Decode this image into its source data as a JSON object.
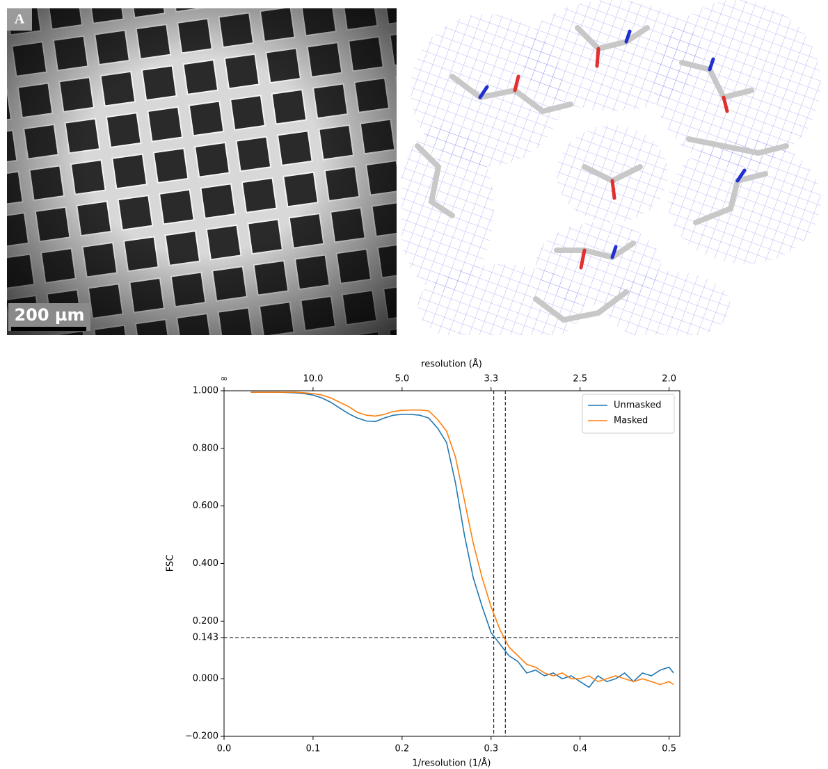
{
  "panels": {
    "label": "A",
    "scale_bar": "200 µm"
  },
  "chart_data": {
    "type": "line",
    "xlabel": "1/resolution (1/Å)",
    "x2label": "resolution (Å)",
    "ylabel": "FSC",
    "xlim": [
      0,
      0.512
    ],
    "x2lim": [
      0,
      0.512
    ],
    "ylim": [
      -0.2,
      1.0
    ],
    "xticks": [
      {
        "value": 0,
        "label": "0.0"
      },
      0.1,
      0.2,
      0.3,
      0.4,
      0.5
    ],
    "x2ticks": [
      {
        "value": 0,
        "label": "∞"
      },
      {
        "value": 0.1,
        "label": "10.0"
      },
      {
        "value": 0.2,
        "label": "5.0"
      },
      {
        "value": 0.3,
        "label": "3.3"
      },
      {
        "value": 0.4,
        "label": "2.5"
      },
      {
        "value": 0.5,
        "label": "2.0"
      }
    ],
    "yticks": [
      {
        "value": -0.2,
        "label": "−0.200"
      },
      {
        "value": 0,
        "label": "0.000"
      },
      {
        "value": 0.143,
        "label": "0.143"
      },
      {
        "value": 0.2,
        "label": "0.200"
      },
      {
        "value": 0.4,
        "label": "0.400"
      },
      {
        "value": 0.6,
        "label": "0.600"
      },
      {
        "value": 0.8,
        "label": "0.800"
      },
      {
        "value": 1.0,
        "label": "1.000"
      }
    ],
    "hlines": [
      0.143
    ],
    "vlines": [
      0.303,
      0.316
    ],
    "legend": "upper right",
    "x": [
      0.03,
      0.04,
      0.05,
      0.06,
      0.07,
      0.08,
      0.09,
      0.1,
      0.11,
      0.12,
      0.13,
      0.14,
      0.15,
      0.16,
      0.17,
      0.18,
      0.19,
      0.2,
      0.21,
      0.22,
      0.23,
      0.24,
      0.25,
      0.26,
      0.27,
      0.28,
      0.29,
      0.3,
      0.31,
      0.32,
      0.33,
      0.34,
      0.35,
      0.36,
      0.37,
      0.38,
      0.39,
      0.4,
      0.41,
      0.42,
      0.43,
      0.44,
      0.45,
      0.46,
      0.47,
      0.48,
      0.49,
      0.5,
      0.505
    ],
    "series": [
      {
        "name": "Unmasked",
        "color": "#1f77b4",
        "values": [
          0.995,
          0.995,
          0.995,
          0.995,
          0.994,
          0.993,
          0.99,
          0.985,
          0.975,
          0.96,
          0.94,
          0.92,
          0.905,
          0.895,
          0.893,
          0.905,
          0.915,
          0.918,
          0.918,
          0.915,
          0.905,
          0.87,
          0.82,
          0.68,
          0.5,
          0.35,
          0.25,
          0.16,
          0.12,
          0.08,
          0.06,
          0.02,
          0.03,
          0.01,
          0.02,
          0.0,
          0.01,
          -0.01,
          -0.03,
          0.01,
          -0.01,
          0.0,
          0.02,
          -0.01,
          0.02,
          0.01,
          0.03,
          0.04,
          0.02
        ]
      },
      {
        "name": "Masked",
        "color": "#ff7f0e",
        "values": [
          0.995,
          0.995,
          0.995,
          0.995,
          0.995,
          0.995,
          0.993,
          0.99,
          0.985,
          0.975,
          0.96,
          0.945,
          0.925,
          0.915,
          0.912,
          0.918,
          0.928,
          0.932,
          0.933,
          0.933,
          0.93,
          0.9,
          0.86,
          0.77,
          0.62,
          0.47,
          0.35,
          0.25,
          0.17,
          0.11,
          0.08,
          0.05,
          0.04,
          0.02,
          0.01,
          0.02,
          0.0,
          0.0,
          0.01,
          -0.01,
          0.0,
          0.01,
          0.0,
          -0.01,
          0.0,
          -0.01,
          -0.02,
          -0.01,
          -0.02
        ]
      }
    ]
  }
}
